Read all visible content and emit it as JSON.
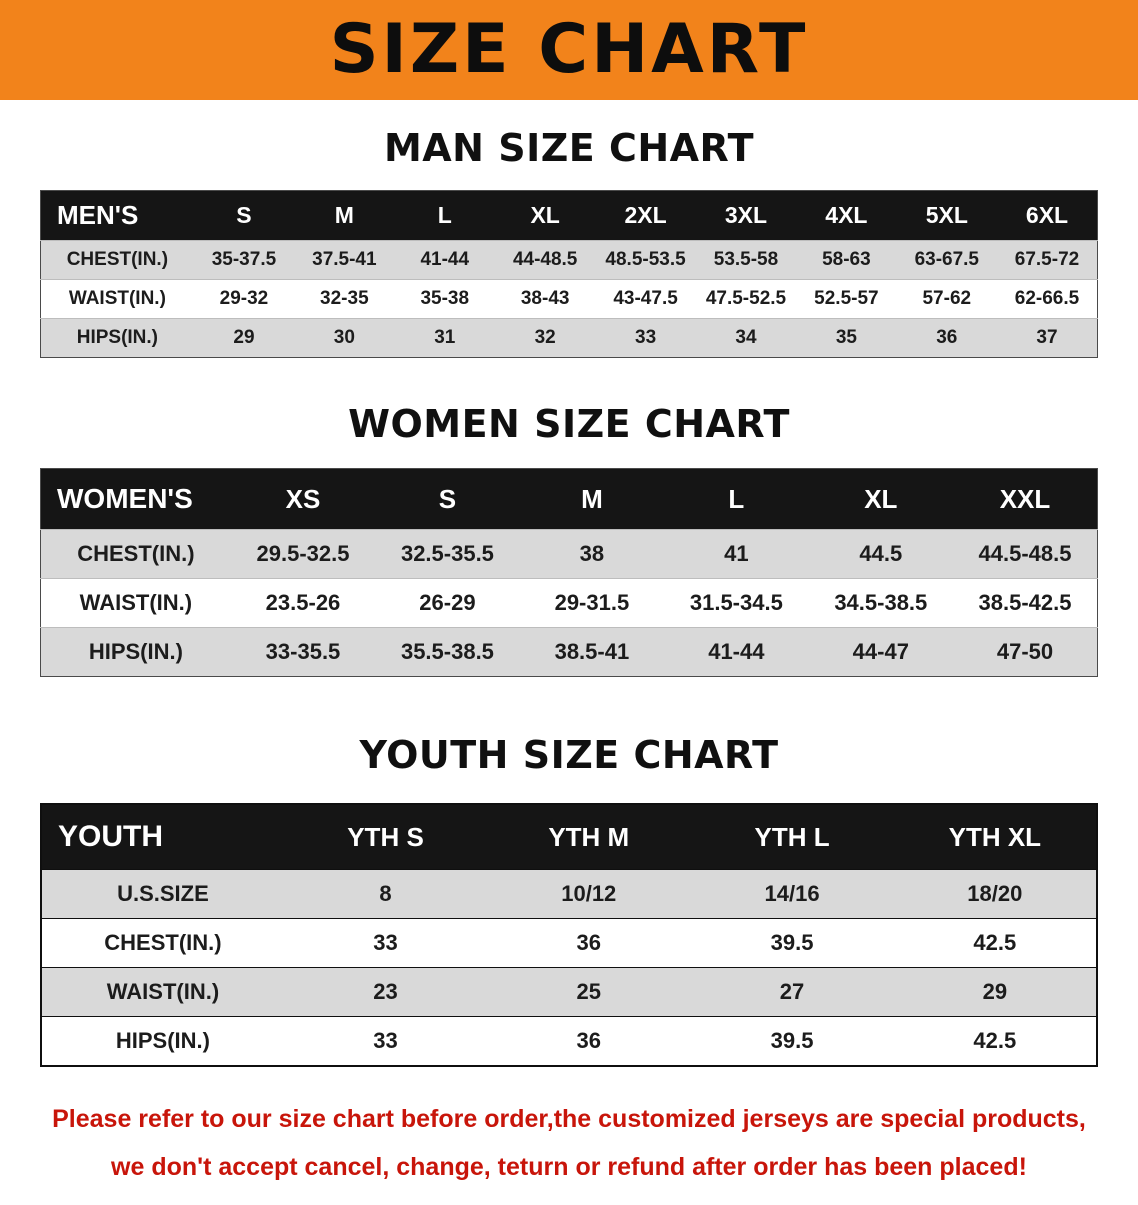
{
  "banner": {
    "title": "SIZE CHART"
  },
  "colors": {
    "accent-orange": "#F2831B",
    "header-black": "#151515",
    "row-gray": "#D9D9D9",
    "disclaimer-red": "#C8150A",
    "text-black": "#1A1A1A"
  },
  "chart_data": [
    {
      "type": "table",
      "title": "MAN SIZE CHART",
      "header": [
        "MEN'S",
        "S",
        "M",
        "L",
        "XL",
        "2XL",
        "3XL",
        "4XL",
        "5XL",
        "6XL"
      ],
      "rows": [
        [
          "CHEST(IN.)",
          "35-37.5",
          "37.5-41",
          "41-44",
          "44-48.5",
          "48.5-53.5",
          "53.5-58",
          "58-63",
          "63-67.5",
          "67.5-72"
        ],
        [
          "WAIST(IN.)",
          "29-32",
          "32-35",
          "35-38",
          "38-43",
          "43-47.5",
          "47.5-52.5",
          "52.5-57",
          "57-62",
          "62-66.5"
        ],
        [
          "HIPS(IN.)",
          "29",
          "30",
          "31",
          "32",
          "33",
          "34",
          "35",
          "36",
          "37"
        ]
      ]
    },
    {
      "type": "table",
      "title": "WOMEN SIZE CHART",
      "header": [
        "WOMEN'S",
        "XS",
        "S",
        "M",
        "L",
        "XL",
        "XXL"
      ],
      "rows": [
        [
          "CHEST(IN.)",
          "29.5-32.5",
          "32.5-35.5",
          "38",
          "41",
          "44.5",
          "44.5-48.5"
        ],
        [
          "WAIST(IN.)",
          "23.5-26",
          "26-29",
          "29-31.5",
          "31.5-34.5",
          "34.5-38.5",
          "38.5-42.5"
        ],
        [
          "HIPS(IN.)",
          "33-35.5",
          "35.5-38.5",
          "38.5-41",
          "41-44",
          "44-47",
          "47-50"
        ]
      ]
    },
    {
      "type": "table",
      "title": "YOUTH SIZE CHART",
      "header": [
        "YOUTH",
        "YTH S",
        "YTH M",
        "YTH L",
        "YTH XL"
      ],
      "rows": [
        [
          "U.S.SIZE",
          "8",
          "10/12",
          "14/16",
          "18/20"
        ],
        [
          "CHEST(IN.)",
          "33",
          "36",
          "39.5",
          "42.5"
        ],
        [
          "WAIST(IN.)",
          "23",
          "25",
          "27",
          "29"
        ],
        [
          "HIPS(IN.)",
          "33",
          "36",
          "39.5",
          "42.5"
        ]
      ]
    }
  ],
  "disclaimer": {
    "line1": "Please refer to our size chart before order,the customized jerseys are special products,",
    "line2": "we don't accept cancel, change, teturn or refund after order has been placed!"
  }
}
